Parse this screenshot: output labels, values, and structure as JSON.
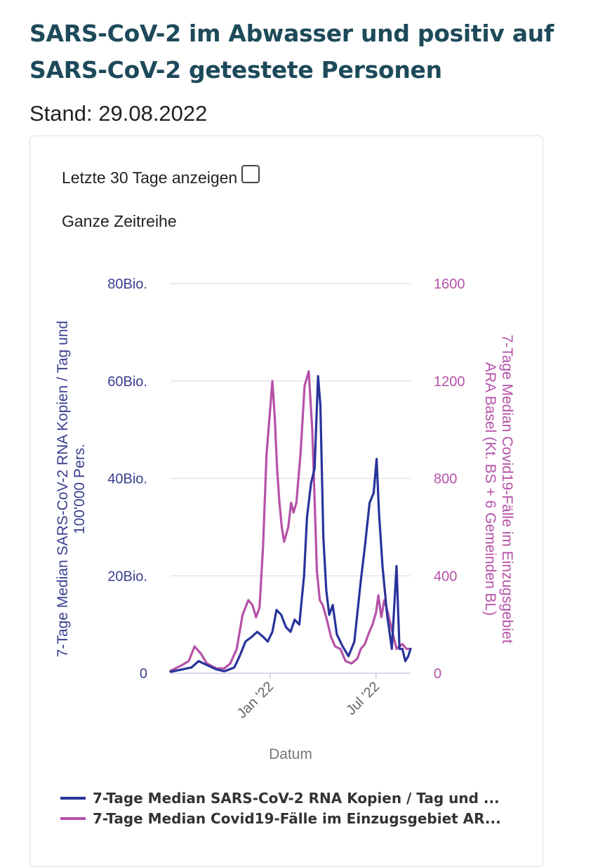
{
  "header": {
    "title": "SARS-CoV-2 im Abwasser und positiv auf SARS-CoV-2 getestete Personen",
    "stand": "Stand: 29.08.2022"
  },
  "controls": {
    "toggle_label": "Letzte 30 Tage anzeigen",
    "toggle_checked": false,
    "range_label": "Ganze Zeitreihe"
  },
  "colors": {
    "series1": "#28339a",
    "series2": "#b552a8",
    "grid": "#e3e4ea",
    "axis_left": "#3a3f8f",
    "axis_right": "#b552a8"
  },
  "chart_data": {
    "type": "line",
    "xlabel": "Datum",
    "x_ticks": [
      {
        "date": "2022-01-01",
        "label": "Jan '22"
      },
      {
        "date": "2022-07-01",
        "label": "Jul '22"
      }
    ],
    "x_range": [
      "2021-07-15",
      "2022-08-29"
    ],
    "y_left": {
      "label_line1": "7-Tage Median SARS-CoV-2 RNA Kopien / Tag und",
      "label_line2": "100'000 Pers.",
      "range": [
        0,
        80
      ],
      "ticks": [
        {
          "v": 0,
          "label": "0"
        },
        {
          "v": 20,
          "label": "20Bio."
        },
        {
          "v": 40,
          "label": "40Bio."
        },
        {
          "v": 60,
          "label": "60Bio."
        },
        {
          "v": 80,
          "label": "80Bio."
        }
      ]
    },
    "y_right": {
      "label_line1": "7-Tage Median Covid19-Fälle im Einzugsgebiet",
      "label_line2": "ARA Basel (Kt. BS + 6 Gemeinden BL)",
      "range": [
        0,
        1600
      ],
      "ticks": [
        {
          "v": 0,
          "label": "0"
        },
        {
          "v": 400,
          "label": "400"
        },
        {
          "v": 800,
          "label": "800"
        },
        {
          "v": 1200,
          "label": "1200"
        },
        {
          "v": 1600,
          "label": "1600"
        }
      ]
    },
    "series": [
      {
        "name": "7-Tage Median SARS-CoV-2 RNA Kopien / Tag und ...",
        "axis": "left",
        "x": [
          "2021-07-15",
          "2021-08-01",
          "2021-08-20",
          "2021-09-01",
          "2021-09-15",
          "2021-10-01",
          "2021-10-15",
          "2021-11-01",
          "2021-11-10",
          "2021-11-20",
          "2021-12-01",
          "2021-12-10",
          "2021-12-20",
          "2021-12-28",
          "2022-01-05",
          "2022-01-12",
          "2022-01-20",
          "2022-01-28",
          "2022-02-05",
          "2022-02-12",
          "2022-02-20",
          "2022-02-28",
          "2022-03-05",
          "2022-03-12",
          "2022-03-18",
          "2022-03-24",
          "2022-03-28",
          "2022-04-02",
          "2022-04-07",
          "2022-04-12",
          "2022-04-18",
          "2022-04-25",
          "2022-05-05",
          "2022-05-15",
          "2022-05-25",
          "2022-06-05",
          "2022-06-12",
          "2022-06-20",
          "2022-06-27",
          "2022-07-02",
          "2022-07-06",
          "2022-07-12",
          "2022-07-20",
          "2022-07-28",
          "2022-08-05",
          "2022-08-10",
          "2022-08-15",
          "2022-08-20",
          "2022-08-25",
          "2022-08-29"
        ],
        "values": [
          0.3,
          0.7,
          1.2,
          2.5,
          1.7,
          0.8,
          0.4,
          1.2,
          3.5,
          6.5,
          7.5,
          8.5,
          7.5,
          6.5,
          8.5,
          13,
          12,
          9.5,
          8.5,
          11,
          10,
          20,
          32,
          39,
          42,
          61,
          55,
          28,
          17,
          12,
          14,
          8,
          5.5,
          3.5,
          6.5,
          19,
          26,
          35,
          37,
          44,
          33,
          22,
          12,
          5,
          22,
          5,
          5,
          2.5,
          3.5,
          5
        ]
      },
      {
        "name": "7-Tage Median Covid19-Fälle im Einzugsgebiet AR...",
        "axis": "right",
        "x": [
          "2021-07-15",
          "2021-08-01",
          "2021-08-15",
          "2021-08-25",
          "2021-09-05",
          "2021-09-15",
          "2021-10-01",
          "2021-10-15",
          "2021-10-25",
          "2021-11-05",
          "2021-11-15",
          "2021-11-25",
          "2021-12-02",
          "2021-12-08",
          "2021-12-14",
          "2021-12-20",
          "2021-12-26",
          "2022-01-01",
          "2022-01-05",
          "2022-01-09",
          "2022-01-13",
          "2022-01-17",
          "2022-01-21",
          "2022-01-25",
          "2022-02-01",
          "2022-02-06",
          "2022-02-10",
          "2022-02-15",
          "2022-02-22",
          "2022-03-01",
          "2022-03-08",
          "2022-03-14",
          "2022-03-18",
          "2022-03-22",
          "2022-03-27",
          "2022-04-01",
          "2022-04-08",
          "2022-04-15",
          "2022-04-22",
          "2022-05-01",
          "2022-05-10",
          "2022-05-20",
          "2022-05-30",
          "2022-06-05",
          "2022-06-12",
          "2022-06-18",
          "2022-06-25",
          "2022-07-01",
          "2022-07-05",
          "2022-07-10",
          "2022-07-15",
          "2022-07-20",
          "2022-07-28",
          "2022-08-05",
          "2022-08-15",
          "2022-08-22",
          "2022-08-29"
        ],
        "values": [
          10,
          30,
          50,
          110,
          80,
          40,
          20,
          20,
          40,
          100,
          240,
          300,
          280,
          230,
          270,
          520,
          900,
          1080,
          1200,
          1050,
          840,
          700,
          600,
          540,
          600,
          700,
          660,
          700,
          900,
          1180,
          1240,
          1000,
          720,
          420,
          300,
          280,
          220,
          150,
          110,
          100,
          50,
          40,
          60,
          100,
          120,
          160,
          200,
          250,
          320,
          230,
          300,
          260,
          180,
          100,
          120,
          100,
          100
        ]
      }
    ]
  }
}
